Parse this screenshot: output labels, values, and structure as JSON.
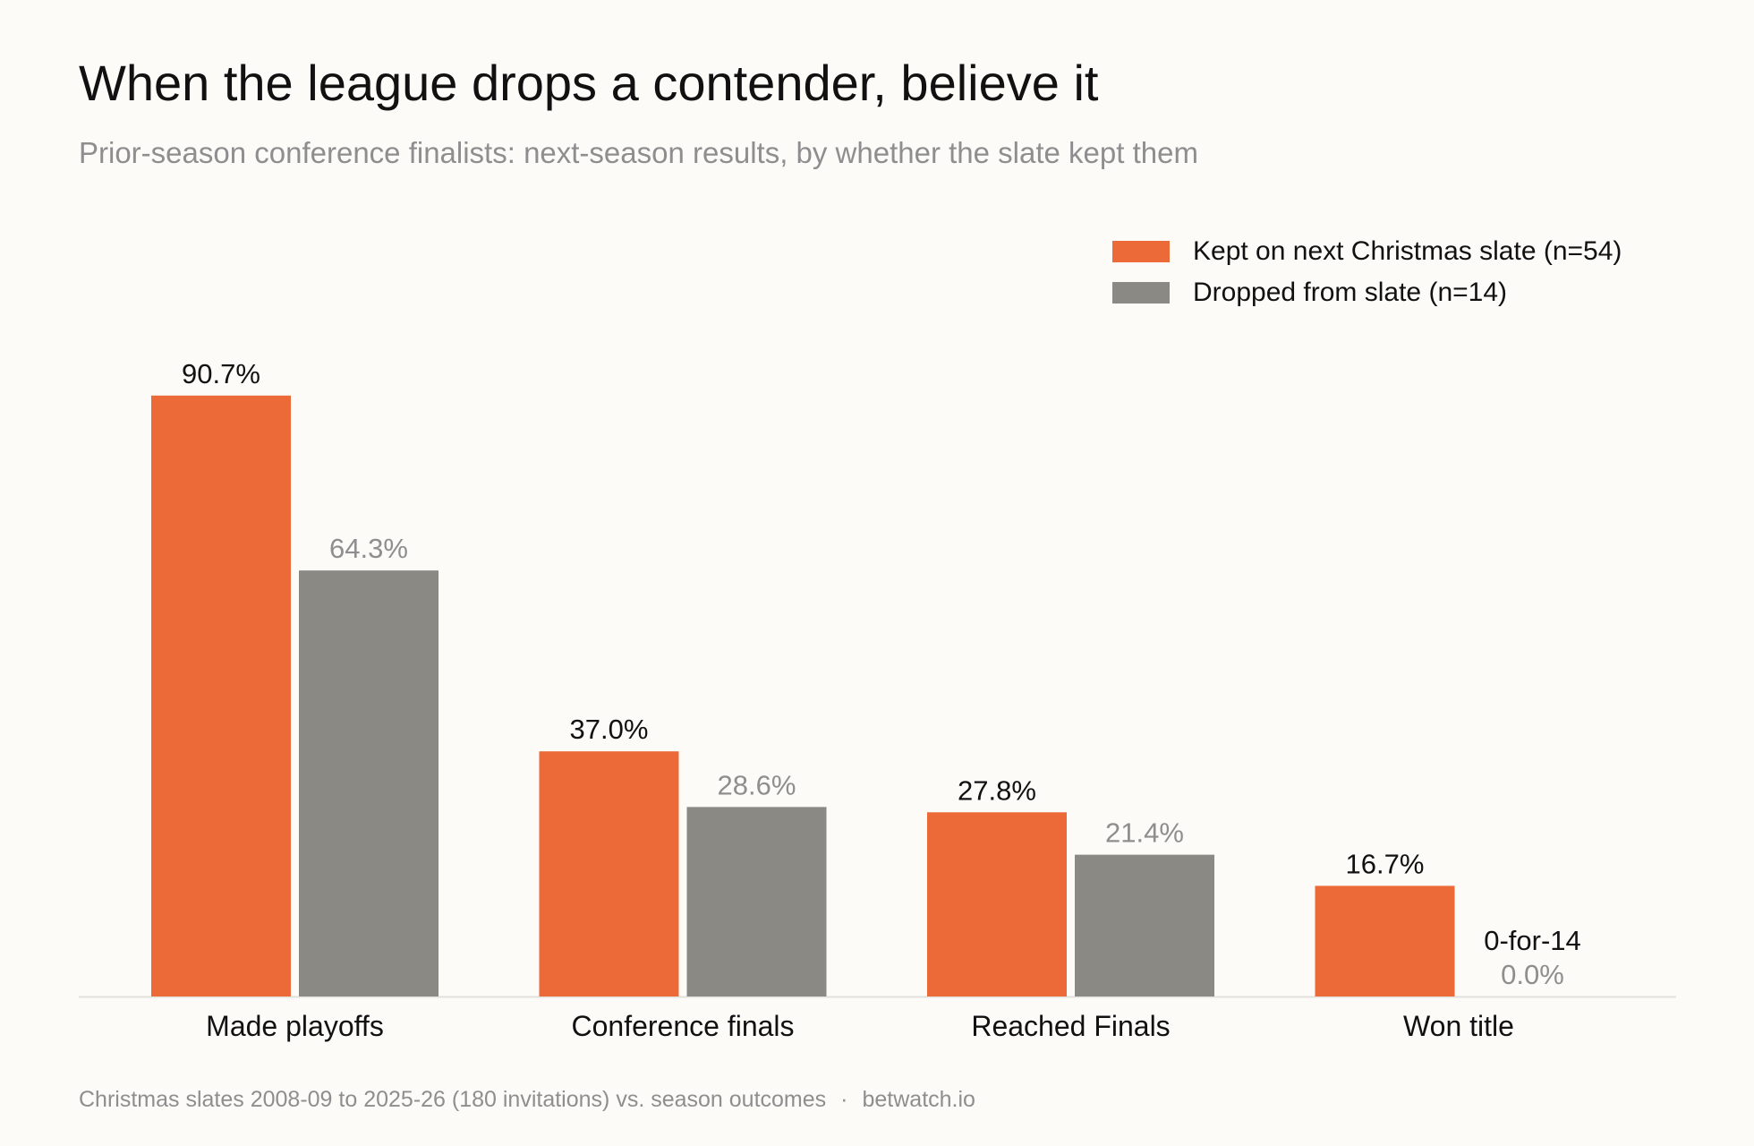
{
  "chart_data": {
    "type": "bar",
    "title": "When the league drops a contender, believe it",
    "subtitle": "Prior-season conference finalists: next-season results, by whether the slate kept them",
    "categories": [
      "Made playoffs",
      "Conference finals",
      "Reached Finals",
      "Won title"
    ],
    "series": [
      {
        "name": "Kept on next Christmas slate (n=54)",
        "color": "#eb6a37",
        "values": [
          90.7,
          37.0,
          27.8,
          16.7
        ],
        "labels": [
          "90.7%",
          "37.0%",
          "27.8%",
          "16.7%"
        ]
      },
      {
        "name": "Dropped from slate (n=14)",
        "color": "#8a8983",
        "values": [
          64.3,
          28.6,
          21.4,
          0.0
        ],
        "labels": [
          "64.3%",
          "28.6%",
          "21.4%",
          "0.0%"
        ]
      }
    ],
    "annotations": [
      {
        "category": "Won title",
        "series": "Dropped from slate (n=14)",
        "text": "0-for-14"
      }
    ],
    "ylim": [
      0,
      100
    ],
    "grid": false,
    "legend_position": "top-right"
  },
  "footer": {
    "source": "Christmas slates 2008-09 to 2025-26 (180 invitations) vs. season outcomes",
    "separator": "·",
    "site": "betwatch.io"
  }
}
